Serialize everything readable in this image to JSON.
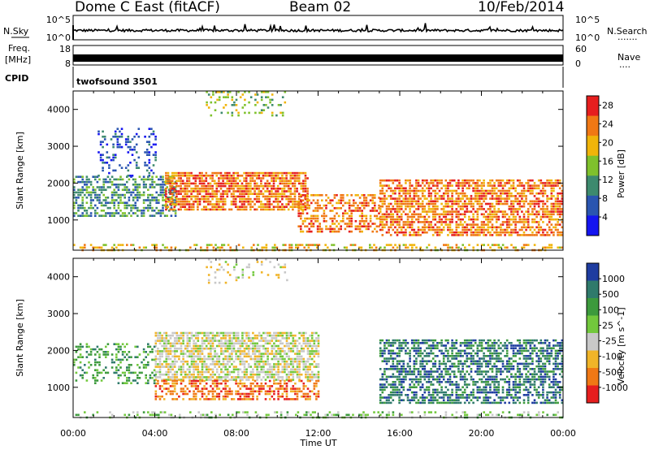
{
  "header": {
    "station": "Dome C East (fitACF)",
    "beam": "Beam 02",
    "date": "10/Feb/2014"
  },
  "top_strips": {
    "nsky_label": "N.Sky",
    "nsky_ticks": [
      "10^5",
      "10^0"
    ],
    "nsearch_label": "N.Search",
    "nsearch_ticks": [
      "10^5",
      "10^0"
    ],
    "freq_label_1": "Freq.",
    "freq_label_2": "[MHz]",
    "freq_ticks": [
      "18",
      "8"
    ],
    "nave_label": "Nave",
    "nave_ticks": [
      "60",
      "0"
    ],
    "cpid_label": "CPID",
    "cpid_value": "twofsound 3501"
  },
  "chart_data": [
    {
      "type": "heatmap",
      "quantity": "Power",
      "ylabel": "Slant Range [km]",
      "ylim": [
        180,
        4500
      ],
      "yticks": [
        "1000",
        "2000",
        "3000",
        "4000"
      ],
      "xlim": [
        "00:00",
        "24:00"
      ],
      "colorbar_label": "Power [dB]",
      "colorbar_ticks": [
        "4",
        "8",
        "12",
        "16",
        "20",
        "24",
        "28"
      ],
      "colorbar_range": [
        0,
        30
      ],
      "colors": [
        "#1414f0",
        "#2a55b0",
        "#3d8a6e",
        "#7fc12c",
        "#f0b40a",
        "#f07814",
        "#e61e1e"
      ],
      "scatter_regions": [
        {
          "t": [
            0,
            5
          ],
          "r": [
            1100,
            2200
          ],
          "level": 2,
          "density": 0.55
        },
        {
          "t": [
            1.2,
            4
          ],
          "r": [
            2200,
            3500
          ],
          "level": 1,
          "density": 0.25
        },
        {
          "t": [
            4.5,
            11.5
          ],
          "r": [
            1300,
            2300
          ],
          "level": 5,
          "density": 0.75
        },
        {
          "t": [
            6.5,
            10.5
          ],
          "r": [
            3800,
            4500
          ],
          "level": 3,
          "density": 0.2
        },
        {
          "t": [
            11,
            15
          ],
          "r": [
            700,
            1700
          ],
          "level": 5,
          "density": 0.5
        },
        {
          "t": [
            15,
            24
          ],
          "r": [
            600,
            2100
          ],
          "level": 5,
          "density": 0.65
        },
        {
          "t": [
            0,
            24
          ],
          "r": [
            180,
            350
          ],
          "level": 4,
          "density": 0.35
        }
      ]
    },
    {
      "type": "heatmap",
      "quantity": "Velocity",
      "ylabel": "Slant Range [km]",
      "ylim": [
        180,
        4500
      ],
      "yticks": [
        "1000",
        "2000",
        "3000",
        "4000"
      ],
      "xlabel": "Time UT",
      "xticks": [
        "00:00",
        "04:00",
        "08:00",
        "12:00",
        "16:00",
        "20:00",
        "00:00"
      ],
      "colorbar_label": "Velocity [m s^-1]",
      "colorbar_ticks": [
        "1000",
        "500",
        "100",
        "25",
        "-25",
        "-100",
        "-500",
        "-1000"
      ],
      "colors": [
        "#1e3ca0",
        "#2f7a6b",
        "#3c9a3c",
        "#72c83c",
        "#c8c8c8",
        "#f0b428",
        "#f07814",
        "#e61e1e"
      ],
      "scatter_regions": [
        {
          "t": [
            4,
            12
          ],
          "r": [
            1200,
            2500
          ],
          "level": 4,
          "density": 0.7
        },
        {
          "t": [
            4,
            12
          ],
          "r": [
            700,
            1200
          ],
          "level": 6,
          "density": 0.55
        },
        {
          "t": [
            0,
            4
          ],
          "r": [
            1100,
            2200
          ],
          "level": 2,
          "density": 0.3
        },
        {
          "t": [
            15,
            24
          ],
          "r": [
            600,
            2300
          ],
          "level": 1,
          "density": 0.6
        },
        {
          "t": [
            6.5,
            10.5
          ],
          "r": [
            3800,
            4500
          ],
          "level": 4,
          "density": 0.15
        },
        {
          "t": [
            0,
            24
          ],
          "r": [
            180,
            350
          ],
          "level": 3,
          "density": 0.3
        }
      ]
    }
  ]
}
